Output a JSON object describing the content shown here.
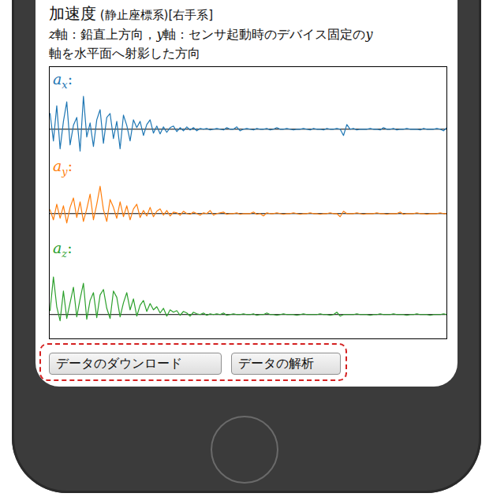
{
  "header": {
    "title": "加速度",
    "subtitle": "(静止座標系)[右手系]",
    "description": [
      [
        {
          "text": "z",
          "math": true
        },
        {
          "text": "軸：鉛直上方向，"
        },
        {
          "text": "y",
          "math": true
        },
        {
          "text": "軸：センサ起動時のデバイス固定の"
        },
        {
          "text": "y",
          "math": true
        }
      ],
      [
        {
          "text": "軸を水平面へ射影した方向"
        }
      ]
    ]
  },
  "chart_data": [
    {
      "type": "line",
      "label": {
        "base": "a",
        "subscript": "x",
        "suffix": ":"
      },
      "color": "#1f77b4",
      "values": [
        20,
        -15,
        30,
        -25,
        10,
        35,
        -20,
        5,
        15,
        -28,
        42,
        -10,
        8,
        -22,
        12,
        25,
        -18,
        15,
        20,
        -12,
        10,
        -25,
        18,
        5,
        -15,
        12,
        2,
        10,
        -8,
        6,
        12,
        -5,
        4,
        -6,
        3,
        -4,
        2,
        4,
        -3,
        2,
        -2,
        3,
        -1,
        2,
        -2,
        1,
        0,
        1,
        -1,
        0,
        1,
        0,
        -1,
        2,
        0,
        0,
        3,
        -2,
        0,
        1,
        0,
        -1,
        1,
        0,
        0,
        1,
        -1,
        0,
        2,
        0,
        0,
        1,
        0,
        -1,
        0,
        0,
        1,
        0,
        -1,
        1,
        0,
        0,
        -1,
        1,
        0,
        0,
        1,
        0,
        -8,
        6,
        0,
        1,
        -1,
        0,
        0,
        0,
        1,
        0,
        0,
        -1,
        2,
        0,
        0,
        1,
        -1,
        0,
        0,
        1,
        0,
        0,
        0,
        -1,
        1,
        0,
        0,
        0,
        1,
        0,
        -2,
        2
      ],
      "xlim": [
        0,
        119
      ],
      "ylim": [
        -32,
        79
      ],
      "yticks": [
        0
      ],
      "tick_labels": false
    },
    {
      "type": "line",
      "label": {
        "base": "a",
        "subscript": "y",
        "suffix": ":"
      },
      "color": "#ff7f0e",
      "values": [
        5,
        -8,
        12,
        -6,
        10,
        -12,
        8,
        20,
        -5,
        15,
        -10,
        6,
        25,
        -8,
        12,
        35,
        5,
        -10,
        18,
        8,
        -6,
        15,
        -4,
        10,
        -8,
        6,
        12,
        -5,
        4,
        -3,
        8,
        -4,
        3,
        6,
        -2,
        4,
        -3,
        2,
        1,
        -2,
        3,
        0,
        -1,
        2,
        0,
        -2,
        1,
        0,
        4,
        -2,
        0,
        1,
        2,
        -1,
        0,
        0,
        1,
        -1,
        0,
        0,
        0,
        2,
        -1,
        0,
        -3,
        1,
        0,
        0,
        1,
        0,
        -1,
        0,
        0,
        1,
        0,
        -1,
        0,
        0,
        1,
        0,
        0,
        -1,
        0,
        0,
        1,
        0,
        0,
        -4,
        3,
        0,
        0,
        0,
        1,
        0,
        -1,
        0,
        0,
        0,
        1,
        0,
        0,
        -1,
        0,
        0,
        0,
        2,
        -1,
        0,
        0,
        0,
        1,
        0,
        0,
        -1,
        0,
        0,
        0,
        1,
        0,
        0
      ],
      "xlim": [
        0,
        119
      ],
      "ylim": [
        -29,
        76
      ],
      "yticks": [
        0
      ],
      "tick_labels": false
    },
    {
      "type": "line",
      "label": {
        "base": "a",
        "subscript": "z",
        "suffix": ":"
      },
      "color": "#2ca02c",
      "values": [
        5,
        48,
        10,
        -8,
        30,
        -5,
        15,
        35,
        -3,
        20,
        40,
        -6,
        18,
        28,
        -4,
        25,
        32,
        8,
        -5,
        30,
        22,
        -3,
        15,
        28,
        6,
        20,
        -2,
        12,
        18,
        4,
        14,
        6,
        10,
        2,
        8,
        -2,
        6,
        3,
        5,
        -1,
        4,
        2,
        -2,
        3,
        1,
        0,
        2,
        -1,
        1,
        0,
        1,
        0,
        2,
        -1,
        0,
        1,
        0,
        0,
        1,
        0,
        0,
        1,
        -1,
        0,
        0,
        2,
        0,
        0,
        -1,
        0,
        1,
        0,
        0,
        0,
        -1,
        0,
        1,
        0,
        0,
        0,
        0,
        1,
        0,
        0,
        -1,
        0,
        3,
        -2,
        0,
        0,
        0,
        0,
        1,
        0,
        0,
        0,
        -1,
        0,
        0,
        1,
        0,
        0,
        0,
        1,
        0,
        0,
        0,
        -1,
        0,
        0,
        1,
        0,
        0,
        0,
        -1,
        0,
        0,
        0,
        1,
        0
      ],
      "xlim": [
        0,
        119
      ],
      "ylim": [
        -30,
        100
      ],
      "yticks": [
        0
      ],
      "tick_labels": false
    }
  ],
  "buttons": [
    "データのダウンロード",
    "データの解析"
  ]
}
